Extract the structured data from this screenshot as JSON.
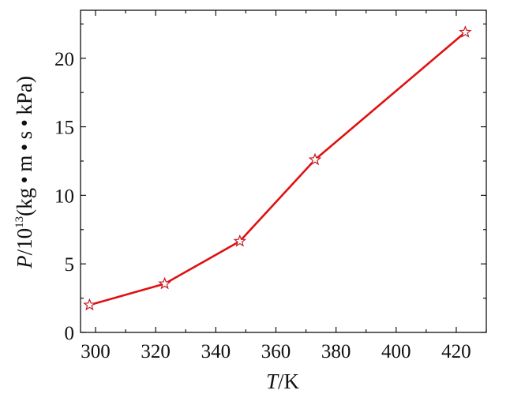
{
  "chart_data": {
    "type": "line",
    "title": "",
    "xlabel": {
      "var": "T",
      "unit": "/K"
    },
    "ylabel": {
      "var": "P",
      "unit_prefix": "/10",
      "unit_exp": "13",
      "unit_suffix": "(kg • m • s • kPa)"
    },
    "xlim": [
      295,
      430
    ],
    "ylim": [
      0,
      23.5
    ],
    "xticks": [
      300,
      320,
      340,
      360,
      380,
      400,
      420
    ],
    "yticks": [
      0,
      5,
      10,
      15,
      20
    ],
    "x_minor_step": 10,
    "y_minor_step": 2.5,
    "grid": false,
    "legend": "none",
    "series": [
      {
        "x": [
          298,
          323,
          348,
          373,
          423
        ],
        "y": [
          2.0,
          3.55,
          6.65,
          12.6,
          21.9
        ],
        "color": "#e01010",
        "marker": "star",
        "marker_color": "#c8141e"
      }
    ]
  }
}
